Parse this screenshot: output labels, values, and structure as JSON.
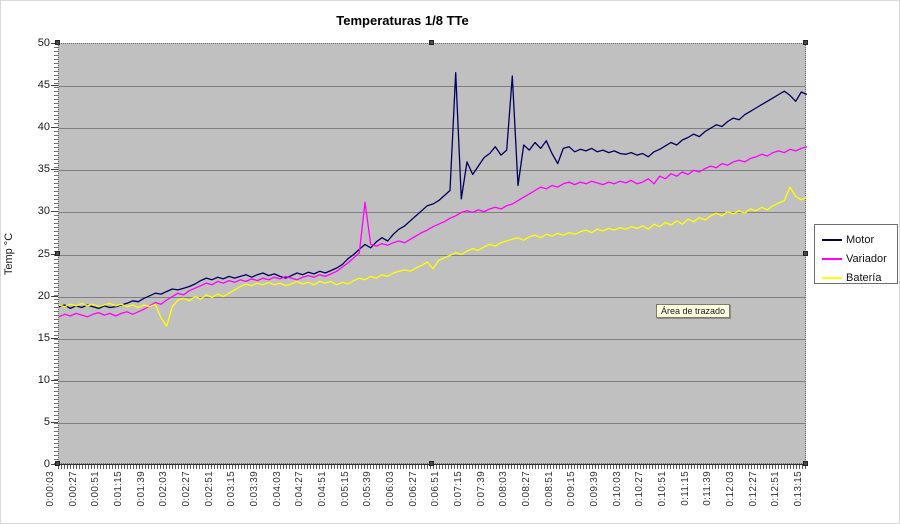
{
  "plot_tooltip": {
    "text": "Área de trazado"
  },
  "chart_data": {
    "type": "line",
    "title": "Temperaturas 1/8 TTe",
    "xlabel": "",
    "ylabel": "Temp °C",
    "ylim": [
      0,
      50
    ],
    "ytick_step": 5,
    "y_ticks": [
      0,
      5,
      10,
      15,
      20,
      25,
      30,
      35,
      40,
      45,
      50
    ],
    "grid": "horizontal",
    "plot_bg": "#c0c0c0",
    "gridline_color": "#808080",
    "legend_position": "right",
    "x_tick_labels": [
      "0:00:03",
      "0:00:27",
      "0:00:51",
      "0:01:15",
      "0:01:39",
      "0:02:03",
      "0:02:27",
      "0:02:51",
      "0:03:15",
      "0:03:39",
      "0:04:03",
      "0:04:27",
      "0:04:51",
      "0:05:15",
      "0:05:39",
      "0:06:03",
      "0:06:27",
      "0:06:51",
      "0:07:15",
      "0:07:39",
      "0:08:03",
      "0:08:27",
      "0:08:51",
      "0:09:15",
      "0:09:39",
      "0:10:03",
      "0:10:27",
      "0:10:51",
      "0:11:15",
      "0:11:39",
      "0:12:03",
      "0:12:27",
      "0:12:51",
      "0:13:15"
    ],
    "series": [
      {
        "name": "Motor",
        "color": "#000060",
        "values": [
          18.8,
          19.0,
          18.6,
          18.9,
          18.7,
          19.0,
          18.8,
          18.6,
          18.9,
          18.7,
          18.8,
          19.0,
          19.2,
          19.5,
          19.4,
          19.8,
          20.1,
          20.4,
          20.3,
          20.6,
          20.9,
          20.8,
          21.0,
          21.2,
          21.5,
          21.9,
          22.2,
          22.0,
          22.3,
          22.1,
          22.4,
          22.2,
          22.4,
          22.6,
          22.3,
          22.6,
          22.8,
          22.5,
          22.7,
          22.4,
          22.2,
          22.5,
          22.8,
          22.6,
          22.9,
          22.7,
          23.0,
          22.8,
          23.1,
          23.4,
          23.8,
          24.5,
          25.0,
          25.6,
          26.2,
          25.8,
          26.5,
          27.0,
          26.6,
          27.4,
          28.0,
          28.4,
          29.0,
          29.6,
          30.2,
          30.8,
          31.0,
          31.4,
          32.0,
          32.6,
          46.6,
          31.6,
          36.0,
          34.5,
          35.5,
          36.5,
          37.0,
          37.8,
          36.8,
          37.4,
          46.2,
          33.2,
          38.0,
          37.4,
          38.3,
          37.6,
          38.5,
          37.0,
          35.8,
          37.6,
          37.8,
          37.2,
          37.5,
          37.3,
          37.6,
          37.2,
          37.4,
          37.1,
          37.3,
          37.0,
          36.9,
          37.1,
          36.8,
          37.0,
          36.6,
          37.2,
          37.5,
          37.9,
          38.3,
          38.0,
          38.6,
          38.9,
          39.3,
          39.0,
          39.6,
          40.0,
          40.4,
          40.2,
          40.8,
          41.2,
          41.0,
          41.6,
          42.0,
          42.4,
          42.8,
          43.2,
          43.6,
          44.0,
          44.4,
          43.9,
          43.2,
          44.3,
          44.0
        ]
      },
      {
        "name": "Variador",
        "color": "#ff00ff",
        "values": [
          17.6,
          17.9,
          17.7,
          18.0,
          17.8,
          17.6,
          17.9,
          18.1,
          17.8,
          18.0,
          17.7,
          18.0,
          18.2,
          17.9,
          18.2,
          18.5,
          18.9,
          19.3,
          19.1,
          19.6,
          20.0,
          20.4,
          20.2,
          20.7,
          21.0,
          21.3,
          21.6,
          21.4,
          21.8,
          21.6,
          21.9,
          21.7,
          22.0,
          21.8,
          22.1,
          21.9,
          22.2,
          22.0,
          22.3,
          22.1,
          22.4,
          22.2,
          22.0,
          22.3,
          22.5,
          22.3,
          22.6,
          22.4,
          22.7,
          23.0,
          23.5,
          24.0,
          24.6,
          25.2,
          31.2,
          26.2,
          26.0,
          26.3,
          26.1,
          26.4,
          26.6,
          26.4,
          26.8,
          27.2,
          27.6,
          27.9,
          28.3,
          28.6,
          28.9,
          29.3,
          29.6,
          30.0,
          30.2,
          30.0,
          30.3,
          30.1,
          30.4,
          30.6,
          30.4,
          30.8,
          31.0,
          31.4,
          31.8,
          32.2,
          32.6,
          33.0,
          32.8,
          33.2,
          33.0,
          33.4,
          33.6,
          33.3,
          33.6,
          33.4,
          33.7,
          33.5,
          33.3,
          33.6,
          33.4,
          33.7,
          33.5,
          33.8,
          33.4,
          33.6,
          34.0,
          33.4,
          34.3,
          34.0,
          34.6,
          34.3,
          34.8,
          34.5,
          35.0,
          34.8,
          35.2,
          35.5,
          35.3,
          35.8,
          35.6,
          36.0,
          36.2,
          36.0,
          36.4,
          36.6,
          36.9,
          36.7,
          37.1,
          37.3,
          37.1,
          37.5,
          37.3,
          37.6,
          37.8
        ]
      },
      {
        "name": "Batería",
        "color": "#ffff00",
        "values": [
          19.0,
          18.8,
          19.1,
          18.9,
          19.2,
          18.9,
          19.1,
          18.8,
          19.0,
          19.2,
          18.9,
          19.1,
          18.8,
          19.0,
          18.7,
          19.0,
          18.8,
          19.1,
          17.5,
          16.5,
          18.8,
          19.6,
          19.8,
          19.5,
          20.0,
          19.7,
          20.2,
          19.9,
          20.3,
          20.0,
          20.4,
          20.8,
          21.2,
          21.5,
          21.3,
          21.6,
          21.4,
          21.7,
          21.4,
          21.6,
          21.3,
          21.5,
          21.8,
          21.5,
          21.7,
          21.4,
          21.8,
          21.6,
          21.8,
          21.4,
          21.7,
          21.5,
          21.9,
          22.2,
          22.0,
          22.4,
          22.2,
          22.6,
          22.4,
          22.8,
          23.0,
          23.2,
          23.0,
          23.4,
          23.7,
          24.1,
          23.3,
          24.3,
          24.6,
          24.9,
          25.2,
          25.0,
          25.4,
          25.7,
          25.5,
          25.9,
          26.2,
          26.0,
          26.4,
          26.6,
          26.8,
          27.0,
          26.7,
          27.1,
          27.3,
          27.0,
          27.4,
          27.2,
          27.5,
          27.3,
          27.6,
          27.4,
          27.7,
          27.9,
          27.6,
          28.0,
          27.8,
          28.1,
          27.9,
          28.2,
          28.0,
          28.3,
          28.1,
          28.4,
          28.0,
          28.6,
          28.3,
          28.8,
          28.5,
          29.0,
          28.6,
          29.2,
          28.9,
          29.4,
          29.1,
          29.6,
          29.9,
          29.6,
          30.1,
          29.8,
          30.2,
          29.9,
          30.4,
          30.2,
          30.6,
          30.3,
          30.8,
          31.1,
          31.4,
          33.0,
          31.9,
          31.5,
          31.8
        ]
      }
    ]
  }
}
